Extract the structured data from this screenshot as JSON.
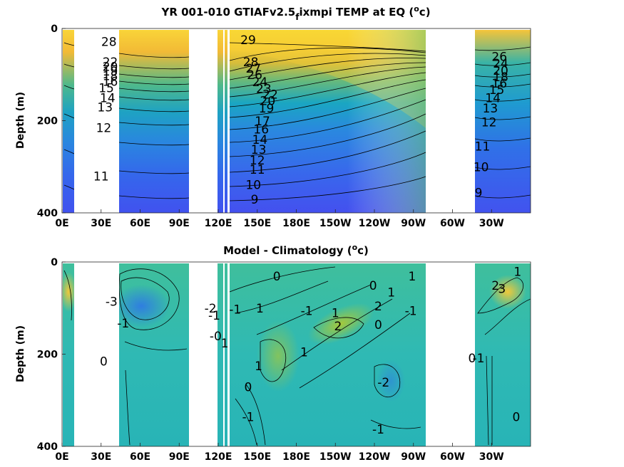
{
  "chart_data": [
    {
      "type": "heatmap",
      "subtype": "filled-contour",
      "title": "YR 001-010 GTIAFv2.5_fixmpi TEMP at EQ (°c)",
      "title_parts": {
        "before": "YR 001-010 GTIAFv2.5",
        "subscript": "f",
        "middle": "ixmpi TEMP at EQ (",
        "superscript": "o",
        "after": "c)"
      },
      "ylabel": "Depth (m)",
      "xlabel": "",
      "x_ticks": [
        "0E",
        "30E",
        "60E",
        "90E",
        "120E",
        "150E",
        "180E",
        "150W",
        "120W",
        "90W",
        "60W",
        "30W"
      ],
      "y_ticks": [
        "0",
        "200",
        "400"
      ],
      "ylim": [
        400,
        0
      ],
      "colormap": "parula",
      "colorscale_range": [
        5,
        30
      ],
      "contour_labels": [
        {
          "text": "28",
          "x": 36,
          "y": 38
        },
        {
          "text": "22",
          "x": 37,
          "y": 82
        },
        {
          "text": "20",
          "x": 37,
          "y": 92
        },
        {
          "text": "19",
          "x": 37,
          "y": 102
        },
        {
          "text": "18",
          "x": 37,
          "y": 112
        },
        {
          "text": "16",
          "x": 37,
          "y": 124
        },
        {
          "text": "15",
          "x": 34,
          "y": 138
        },
        {
          "text": "14",
          "x": 35,
          "y": 160
        },
        {
          "text": "13",
          "x": 33,
          "y": 180
        },
        {
          "text": "12",
          "x": 32,
          "y": 225
        },
        {
          "text": "11",
          "x": 30,
          "y": 330
        },
        {
          "text": "29",
          "x": 143,
          "y": 34
        },
        {
          "text": "28",
          "x": 145,
          "y": 82
        },
        {
          "text": "27",
          "x": 147,
          "y": 96
        },
        {
          "text": "26",
          "x": 148,
          "y": 110
        },
        {
          "text": "24",
          "x": 152,
          "y": 125
        },
        {
          "text": "23",
          "x": 155,
          "y": 140
        },
        {
          "text": "22",
          "x": 160,
          "y": 152
        },
        {
          "text": "20",
          "x": 158,
          "y": 166
        },
        {
          "text": "19",
          "x": 157,
          "y": 182
        },
        {
          "text": "17",
          "x": 154,
          "y": 210
        },
        {
          "text": "16",
          "x": 153,
          "y": 228
        },
        {
          "text": "14",
          "x": 152,
          "y": 250
        },
        {
          "text": "13",
          "x": 151,
          "y": 272
        },
        {
          "text": "12",
          "x": 150,
          "y": 295
        },
        {
          "text": "11",
          "x": 150,
          "y": 315
        },
        {
          "text": "10",
          "x": 147,
          "y": 348
        },
        {
          "text": "9",
          "x": 148,
          "y": 380
        },
        {
          "text": "26",
          "x": 336,
          "y": 70
        },
        {
          "text": "24",
          "x": 337,
          "y": 85
        },
        {
          "text": "20",
          "x": 337,
          "y": 100
        },
        {
          "text": "18",
          "x": 337,
          "y": 114
        },
        {
          "text": "16",
          "x": 336,
          "y": 128
        },
        {
          "text": "15",
          "x": 334,
          "y": 142
        },
        {
          "text": "14",
          "x": 331,
          "y": 160
        },
        {
          "text": "13",
          "x": 329,
          "y": 182
        },
        {
          "text": "12",
          "x": 328,
          "y": 212
        },
        {
          "text": "11",
          "x": 323,
          "y": 265
        },
        {
          "text": "10",
          "x": 322,
          "y": 310
        },
        {
          "text": "9",
          "x": 320,
          "y": 365
        }
      ]
    },
    {
      "type": "heatmap",
      "subtype": "filled-contour",
      "title": "Model - Climatology (°c)",
      "title_parts": {
        "before": "Model - Climatology (",
        "superscript": "o",
        "after": "c)"
      },
      "ylabel": "Depth (m)",
      "xlabel": "",
      "x_ticks": [
        "0E",
        "30E",
        "60E",
        "90E",
        "120E",
        "150E",
        "180E",
        "150W",
        "120W",
        "90W",
        "60W",
        "30W"
      ],
      "y_ticks": [
        "0",
        "200",
        "400"
      ],
      "ylim": [
        400,
        0
      ],
      "colormap": "parula",
      "colorscale_range": [
        -4,
        4
      ],
      "contour_labels": [
        {
          "text": "-3",
          "x": 38,
          "y": 95
        },
        {
          "text": "-1",
          "x": 47,
          "y": 142
        },
        {
          "text": "0",
          "x": 32,
          "y": 225
        },
        {
          "text": "-2",
          "x": 114,
          "y": 110
        },
        {
          "text": "-1",
          "x": 117,
          "y": 125
        },
        {
          "text": "-0",
          "x": 118,
          "y": 170
        },
        {
          "text": "1",
          "x": 125,
          "y": 185
        },
        {
          "text": "-1",
          "x": 133,
          "y": 112
        },
        {
          "text": "1",
          "x": 152,
          "y": 110
        },
        {
          "text": "1",
          "x": 151,
          "y": 235
        },
        {
          "text": "0",
          "x": 143,
          "y": 280
        },
        {
          "text": "-1",
          "x": 143,
          "y": 345
        },
        {
          "text": "0",
          "x": 165,
          "y": 40
        },
        {
          "text": "-1",
          "x": 188,
          "y": 115
        },
        {
          "text": "1",
          "x": 210,
          "y": 120
        },
        {
          "text": "2",
          "x": 212,
          "y": 148
        },
        {
          "text": "2",
          "x": 243,
          "y": 105
        },
        {
          "text": "1",
          "x": 186,
          "y": 205
        },
        {
          "text": "0",
          "x": 243,
          "y": 145
        },
        {
          "text": "0",
          "x": 239,
          "y": 60
        },
        {
          "text": "1",
          "x": 253,
          "y": 75
        },
        {
          "text": "1",
          "x": 269,
          "y": 40
        },
        {
          "text": "-1",
          "x": 268,
          "y": 115
        },
        {
          "text": "-2",
          "x": 247,
          "y": 270
        },
        {
          "text": "-1",
          "x": 243,
          "y": 372
        },
        {
          "text": "-1",
          "x": 320,
          "y": 218
        },
        {
          "text": "0",
          "x": 315,
          "y": 218
        },
        {
          "text": "2",
          "x": 333,
          "y": 60
        },
        {
          "text": "3",
          "x": 338,
          "y": 67
        },
        {
          "text": "1",
          "x": 350,
          "y": 30
        },
        {
          "text": "0",
          "x": 349,
          "y": 345
        }
      ]
    }
  ]
}
